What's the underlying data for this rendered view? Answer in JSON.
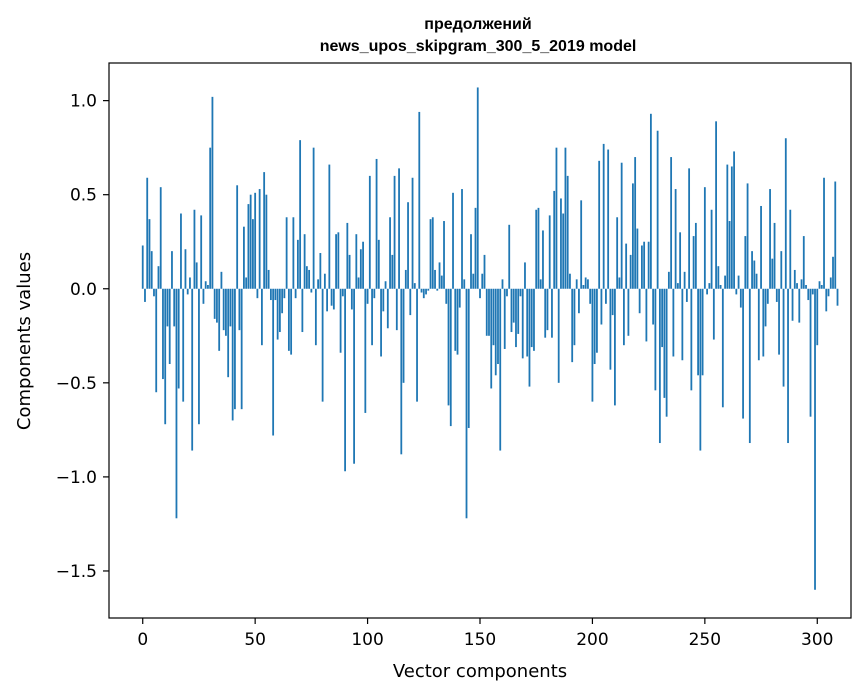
{
  "chart_data": {
    "type": "bar",
    "title_line1": "предолжений",
    "title_line2": "news_upos_skipgram_300_5_2019 model",
    "xlabel": "Vector components",
    "ylabel": "Components values",
    "xlim": [
      -15,
      315
    ],
    "ylim": [
      -1.75,
      1.2
    ],
    "x_ticks": [
      0,
      50,
      100,
      150,
      200,
      250,
      300
    ],
    "x_tick_labels": [
      "0",
      "50",
      "100",
      "150",
      "200",
      "250",
      "300"
    ],
    "y_ticks": [
      1.0,
      0.5,
      0.0,
      -0.5,
      -1.0,
      -1.5
    ],
    "y_tick_labels": [
      "1.0",
      "0.5",
      "0.0",
      "−0.5",
      "−1.0",
      "−1.5"
    ],
    "bar_color": "#1f77b4",
    "grid": false,
    "values": [
      0.23,
      -0.07,
      0.59,
      0.37,
      0.2,
      -0.04,
      -0.55,
      0.12,
      0.54,
      -0.48,
      -0.72,
      -0.2,
      -0.4,
      0.2,
      -0.2,
      -1.22,
      -0.53,
      0.4,
      -0.6,
      0.21,
      -0.03,
      0.06,
      -0.86,
      0.42,
      0.14,
      -0.72,
      0.39,
      -0.08,
      0.04,
      0.02,
      0.75,
      1.02,
      -0.16,
      -0.18,
      -0.33,
      0.09,
      -0.22,
      -0.25,
      -0.47,
      -0.2,
      -0.7,
      -0.64,
      0.55,
      -0.22,
      -0.64,
      0.33,
      0.06,
      0.45,
      0.5,
      0.37,
      0.51,
      -0.05,
      0.53,
      -0.3,
      0.62,
      0.5,
      0.1,
      -0.06,
      -0.78,
      -0.06,
      -0.27,
      -0.23,
      -0.13,
      -0.05,
      0.38,
      -0.33,
      -0.35,
      0.38,
      -0.05,
      0.26,
      0.79,
      -0.23,
      0.29,
      0.12,
      0.1,
      -0.02,
      0.75,
      -0.3,
      0.05,
      0.19,
      -0.6,
      0.08,
      -0.12,
      0.66,
      -0.09,
      -0.11,
      0.29,
      0.3,
      -0.34,
      -0.04,
      -0.97,
      0.35,
      0.18,
      -0.11,
      -0.93,
      0.29,
      0.06,
      0.21,
      0.25,
      -0.66,
      -0.08,
      0.6,
      -0.3,
      -0.05,
      0.69,
      0.26,
      -0.36,
      -0.12,
      0.04,
      -0.21,
      0.38,
      0.18,
      0.6,
      -0.22,
      0.64,
      -0.88,
      -0.5,
      0.1,
      0.46,
      -0.14,
      0.59,
      0.03,
      -0.6,
      0.94,
      -0.02,
      -0.05,
      -0.03,
      -0.01,
      0.37,
      0.38,
      0.1,
      -0.01,
      0.14,
      0.07,
      0.36,
      -0.08,
      -0.62,
      -0.73,
      0.51,
      -0.33,
      -0.35,
      -0.1,
      0.53,
      0.05,
      -1.22,
      -0.74,
      0.29,
      0.08,
      0.43,
      1.07,
      -0.05,
      0.08,
      0.18,
      -0.25,
      -0.25,
      -0.53,
      -0.3,
      -0.46,
      -0.4,
      -0.86,
      0.05,
      -0.32,
      -0.04,
      0.34,
      -0.23,
      -0.18,
      -0.31,
      -0.24,
      -0.04,
      -0.37,
      0.14,
      -0.36,
      -0.52,
      -0.31,
      -0.33,
      0.42,
      0.43,
      0.05,
      0.31,
      -0.26,
      -0.22,
      0.39,
      -0.26,
      0.52,
      0.75,
      -0.5,
      0.48,
      0.4,
      0.75,
      0.6,
      0.08,
      -0.39,
      -0.3,
      0.05,
      -0.13,
      0.47,
      0.02,
      0.06,
      0.05,
      -0.08,
      -0.6,
      -0.4,
      -0.34,
      0.68,
      -0.19,
      0.77,
      -0.08,
      0.74,
      -0.43,
      -0.14,
      -0.62,
      0.38,
      0.06,
      0.67,
      -0.3,
      0.24,
      -0.25,
      0.18,
      0.56,
      0.7,
      0.32,
      -0.13,
      0.23,
      0.25,
      -0.28,
      0.25,
      0.93,
      -0.19,
      -0.54,
      0.84,
      -0.82,
      -0.31,
      -0.58,
      -0.68,
      0.09,
      0.7,
      -0.36,
      0.53,
      0.03,
      0.3,
      -0.38,
      0.09,
      -0.07,
      0.64,
      -0.54,
      0.28,
      0.35,
      -0.46,
      -0.86,
      -0.46,
      0.54,
      -0.03,
      0.03,
      0.42,
      -0.27,
      0.89,
      0.12,
      0.02,
      -0.63,
      0.07,
      0.66,
      0.36,
      0.65,
      0.73,
      -0.03,
      0.07,
      -0.1,
      -0.69,
      0.28,
      0.56,
      -0.82,
      0.2,
      0.15,
      0.08,
      -0.38,
      0.44,
      -0.36,
      -0.2,
      -0.08,
      0.53,
      0.16,
      0.35,
      -0.07,
      -0.35,
      0.2,
      -0.52,
      0.8,
      -0.82,
      0.42,
      -0.17,
      0.1,
      0.03,
      -0.18,
      0.05,
      0.28,
      0.02,
      -0.06,
      -0.68,
      -0.03,
      -1.6,
      -0.3,
      0.04,
      0.02,
      0.59,
      -0.12,
      -0.04,
      0.06,
      0.17,
      0.57,
      -0.09
    ]
  }
}
